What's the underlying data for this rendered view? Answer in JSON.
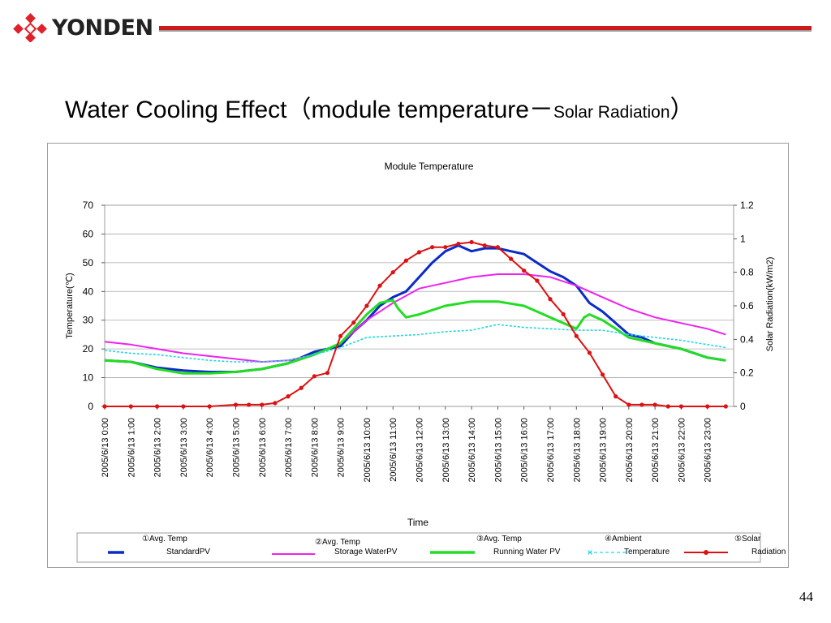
{
  "brand": {
    "name": "YONDEN",
    "red": "#e0202a",
    "rule": "#cc1a1a"
  },
  "slide": {
    "title_main": "Water Cooling Effect（module temperature－",
    "title_small": "Solar Radiation",
    "title_close": "）",
    "page_number": "44"
  },
  "chart_data": {
    "type": "line",
    "title": "Module Temperature",
    "xlabel": "Time",
    "ylabel": "Temperature(℃)",
    "y2label": "Solar Radiation(kW/m2)",
    "ylim": [
      0,
      70
    ],
    "y2lim": [
      0,
      1.2
    ],
    "yticks": [
      "0",
      "10",
      "20",
      "30",
      "40",
      "50",
      "60",
      "70"
    ],
    "y2ticks": [
      "0",
      "0.2",
      "0.4",
      "0.6",
      "0.8",
      "1",
      "1.2"
    ],
    "xlim": [
      0,
      24
    ],
    "x_tick_labels": [
      "2005/6/13 0:00",
      "2005/6/13 1:00",
      "2005/6/13 2:00",
      "2005/6/13 3:00",
      "2005/6/13 4:00",
      "2005/6/13 5:00",
      "2005/6/13 6:00",
      "2005/6/13 7:00",
      "2005/6/13 8:00",
      "2005/6/13 9:00",
      "2005/6/13 10:00",
      "2005/6/13 11:00",
      "2005/6/13 12:00",
      "2005/6/13 13:00",
      "2005/6/13 14:00",
      "2005/6/13 15:00",
      "2005/6/13 16:00",
      "2005/6/13 17:00",
      "2005/6/13 18:00",
      "2005/6/13 19:00",
      "2005/6/13 20:00",
      "2005/6/13 21:00",
      "2005/6/13 22:00",
      "2005/6/13 23:00"
    ],
    "grid": "horizontal",
    "legend_position": "bottom",
    "series": [
      {
        "legend1": "①Avg. Temp",
        "legend2": "StandardPV",
        "color": "#0a2bc6",
        "style": "solid-thick",
        "axis": "left",
        "x": [
          0,
          1,
          2,
          3,
          4,
          5,
          6,
          7,
          8,
          8.5,
          9,
          9.5,
          10,
          10.5,
          11,
          11.5,
          12,
          12.5,
          13,
          13.5,
          14,
          14.5,
          15,
          15.5,
          16,
          16.5,
          17,
          17.5,
          18,
          18.5,
          19,
          19.5,
          20,
          20.5,
          21,
          22,
          23,
          23.7
        ],
        "y": [
          16,
          15.5,
          13.5,
          12.5,
          12,
          12,
          13,
          15,
          19,
          20,
          21,
          26,
          30,
          35,
          38,
          40,
          45,
          50,
          54,
          56,
          54,
          55,
          55,
          54,
          53,
          50,
          47,
          45,
          42,
          36,
          33,
          29,
          25,
          24,
          22,
          20,
          17,
          16
        ]
      },
      {
        "legend1": "②Avg. Temp",
        "legend2": "Storage WaterPV",
        "color": "#ee22ee",
        "style": "solid",
        "axis": "left",
        "x": [
          0,
          1,
          2,
          3,
          4,
          5,
          6,
          7,
          8,
          9,
          10,
          11,
          12,
          13,
          14,
          15,
          16,
          17,
          18,
          19,
          20,
          21,
          22,
          23,
          23.7
        ],
        "y": [
          22.5,
          21.5,
          20,
          18.5,
          17.5,
          16.5,
          15.5,
          16,
          18,
          22,
          30,
          36,
          41,
          43,
          45,
          46,
          46,
          45,
          42,
          38,
          34,
          31,
          29,
          27,
          25
        ]
      },
      {
        "legend1": "③Avg. Temp",
        "legend2": "Running Water PV",
        "color": "#22dd22",
        "style": "solid-thick",
        "axis": "left",
        "x": [
          0,
          1,
          2,
          3,
          4,
          5,
          6,
          7,
          8,
          9,
          10,
          10.5,
          11,
          11.2,
          11.5,
          12,
          13,
          14,
          15,
          16,
          17,
          18,
          18.3,
          18.5,
          19,
          19.5,
          20,
          21,
          22,
          23,
          23.7
        ],
        "y": [
          16,
          15.5,
          13,
          11.5,
          11.5,
          12,
          13,
          15,
          18,
          22,
          32,
          36,
          37,
          34,
          31,
          32,
          35,
          36.5,
          36.5,
          35,
          31,
          27,
          31,
          32,
          30,
          27,
          24,
          22,
          20,
          17,
          16
        ]
      },
      {
        "legend1": "④Ambient",
        "legend2": "Temperature",
        "color": "#22d6e8",
        "style": "dashed-cross",
        "axis": "left",
        "x": [
          0,
          1,
          2,
          3,
          4,
          5,
          6,
          7,
          8,
          9,
          10,
          11,
          12,
          13,
          14,
          15,
          16,
          17,
          18,
          19,
          20,
          21,
          22,
          23,
          23.7
        ],
        "y": [
          19.5,
          18.5,
          18,
          17,
          16,
          15.5,
          15.5,
          16,
          18,
          20.5,
          24,
          24.5,
          25,
          26,
          26.5,
          28.5,
          27.5,
          27,
          26.5,
          26.5,
          25,
          24,
          23,
          21.5,
          20.5
        ]
      },
      {
        "legend1": "⑤Solar",
        "legend2": "Radiation",
        "color": "#dd1111",
        "style": "solid-dot",
        "axis": "right",
        "x": [
          0,
          1,
          2,
          3,
          4,
          5,
          5.5,
          6,
          6.5,
          7,
          7.5,
          8,
          8.5,
          9,
          9.5,
          10,
          10.5,
          11,
          11.5,
          12,
          12.5,
          13,
          13.5,
          14,
          14.5,
          15,
          15.5,
          16,
          16.5,
          17,
          17.5,
          18,
          18.5,
          19,
          19.5,
          20,
          20.5,
          21,
          21.5,
          22,
          23,
          23.7
        ],
        "y": [
          0,
          0,
          0,
          0,
          0,
          0.01,
          0.01,
          0.01,
          0.02,
          0.06,
          0.11,
          0.18,
          0.2,
          0.42,
          0.5,
          0.6,
          0.72,
          0.8,
          0.87,
          0.92,
          0.95,
          0.95,
          0.97,
          0.98,
          0.96,
          0.95,
          0.88,
          0.81,
          0.75,
          0.64,
          0.55,
          0.42,
          0.32,
          0.19,
          0.06,
          0.01,
          0.01,
          0.01,
          0,
          0,
          0,
          0
        ]
      }
    ]
  }
}
